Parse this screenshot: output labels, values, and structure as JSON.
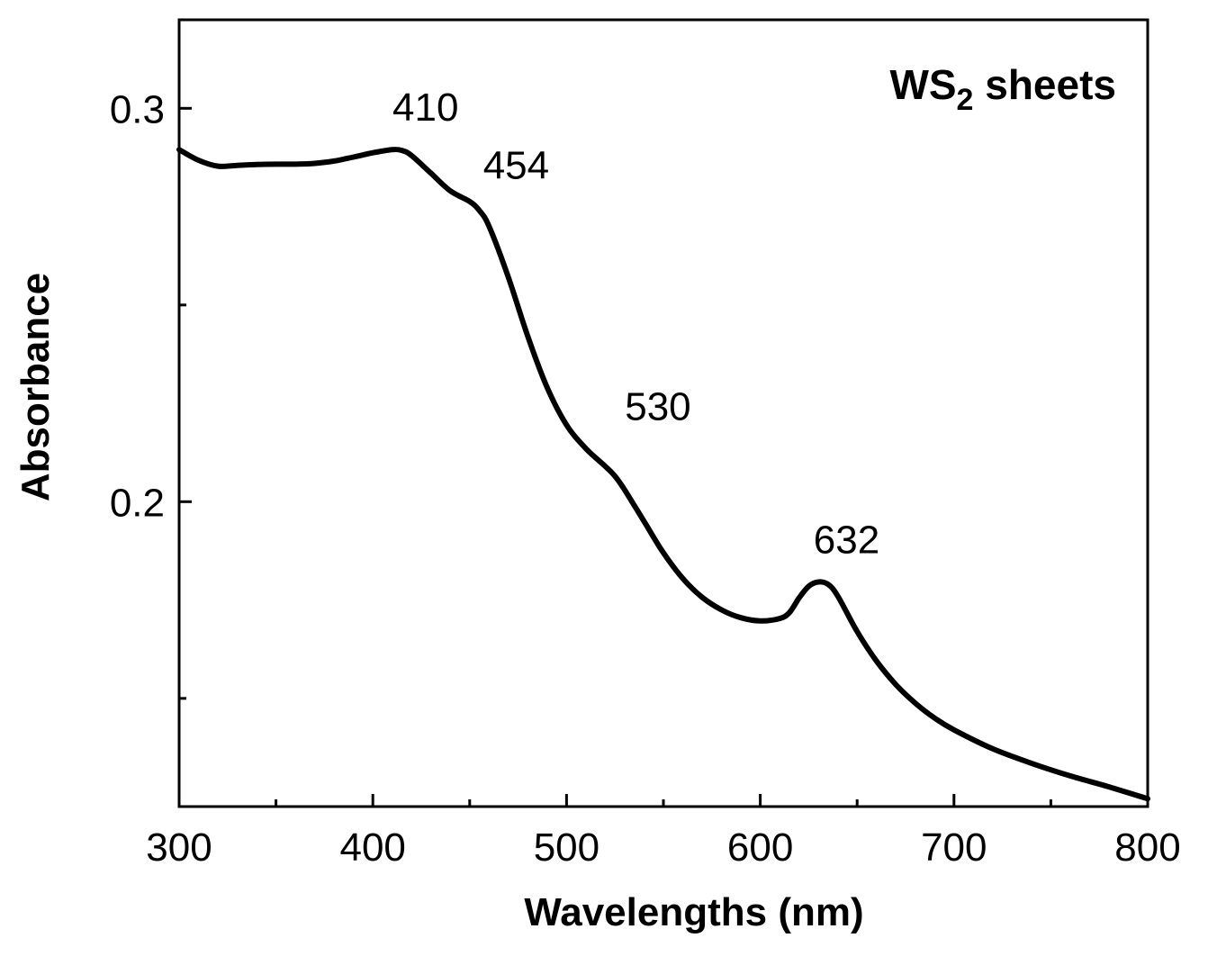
{
  "chart_data": {
    "type": "line",
    "title": "",
    "xlabel": "Wavelengths (nm)",
    "ylabel": "Absorbance",
    "xlim": [
      300,
      800
    ],
    "ylim": [
      0.1225,
      0.3225
    ],
    "x_major_ticks": [
      300,
      400,
      500,
      600,
      700,
      800
    ],
    "x_minor_ticks": [
      350,
      450,
      550,
      650,
      750
    ],
    "x_tick_labels": [
      "300",
      "400",
      "500",
      "600",
      "700",
      "800"
    ],
    "y_major_ticks": [
      0.2,
      0.3
    ],
    "y_minor_ticks": [
      0.15,
      0.25
    ],
    "y_tick_labels": [
      "0.2",
      "0.3"
    ],
    "legend": {
      "text": "WS",
      "subscript": "2",
      "suffix": " sheets",
      "placement": "top-right"
    },
    "annotations": [
      {
        "text": "410",
        "x": 410,
        "y": 0.2895
      },
      {
        "text": "454",
        "x": 454,
        "y": 0.2748
      },
      {
        "text": "530",
        "x": 530,
        "y": 0.2135
      },
      {
        "text": "632",
        "x": 632,
        "y": 0.1796
      }
    ],
    "series": [
      {
        "name": "WS2 sheets",
        "color": "#000000",
        "x": [
          300,
          310,
          320,
          330,
          340,
          350,
          360,
          370,
          380,
          390,
          400,
          410,
          415,
          420,
          430,
          440,
          450,
          455,
          460,
          470,
          480,
          490,
          500,
          510,
          520,
          525,
          530,
          540,
          550,
          560,
          570,
          580,
          590,
          600,
          610,
          615,
          620,
          625,
          630,
          635,
          640,
          650,
          660,
          670,
          680,
          690,
          700,
          720,
          740,
          760,
          780,
          800
        ],
        "y": [
          0.2895,
          0.2868,
          0.2853,
          0.2855,
          0.2857,
          0.2858,
          0.2858,
          0.286,
          0.2866,
          0.2876,
          0.2887,
          0.2895,
          0.2893,
          0.288,
          0.2835,
          0.279,
          0.2763,
          0.274,
          0.27,
          0.257,
          0.242,
          0.229,
          0.2195,
          0.2135,
          0.209,
          0.2065,
          0.203,
          0.195,
          0.187,
          0.1805,
          0.1757,
          0.1725,
          0.1705,
          0.1697,
          0.1703,
          0.1718,
          0.1755,
          0.1785,
          0.1796,
          0.179,
          0.176,
          0.167,
          0.1595,
          0.1535,
          0.1488,
          0.145,
          0.142,
          0.1372,
          0.1335,
          0.1303,
          0.1275,
          0.1245
        ]
      }
    ]
  }
}
